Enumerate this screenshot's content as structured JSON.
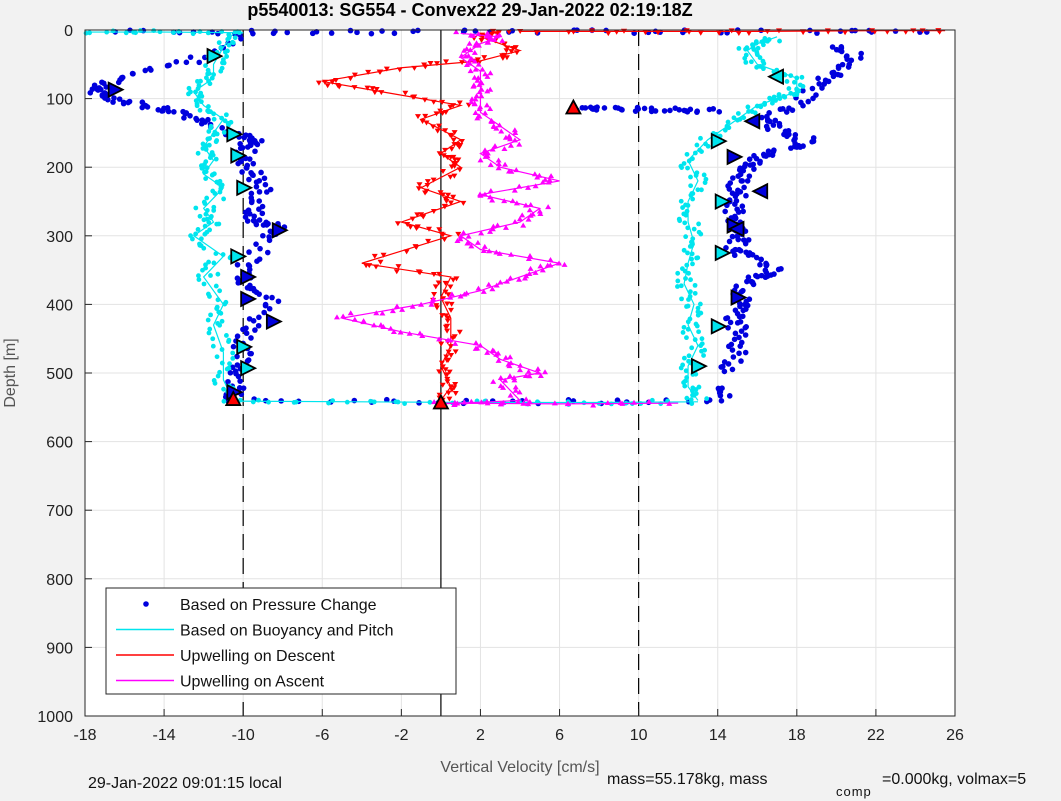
{
  "chart_data": {
    "type": "scatter",
    "title": "p5540013: SG554 - Convex22 29-Jan-2022 02:19:18Z",
    "xlabel": "Vertical Velocity [cm/s]",
    "ylabel": "Depth [m]",
    "xlim": [
      -18,
      26
    ],
    "ylim": [
      0,
      1000
    ],
    "y_reversed": true,
    "grid": true,
    "x_ticks": [
      -18,
      -14,
      -10,
      -6,
      -2,
      2,
      6,
      10,
      14,
      18,
      22,
      26
    ],
    "y_ticks": [
      0,
      100,
      200,
      300,
      400,
      500,
      600,
      700,
      800,
      900,
      1000
    ],
    "reference_lines": [
      {
        "x": -10,
        "style": "dashed",
        "color": "#000000"
      },
      {
        "x": 0,
        "style": "solid",
        "color": "#000000"
      },
      {
        "x": 10,
        "style": "dashed",
        "color": "#000000"
      }
    ],
    "legend": {
      "position": "bottom-left",
      "entries": [
        {
          "label": "Based on Pressure Change",
          "marker": "dot",
          "color": "#0000dd"
        },
        {
          "label": "Based on Buoyancy and Pitch",
          "marker": "line",
          "color": "#00e5ee"
        },
        {
          "label": "Upwelling on Descent",
          "marker": "line",
          "color": "#ff0000"
        },
        {
          "label": "Upwelling on Ascent",
          "marker": "line",
          "color": "#ff00ff"
        }
      ]
    },
    "series": [
      {
        "name": "Based on Pressure Change",
        "color": "#0000dd",
        "segments": [
          {
            "x": [
              -9.5,
              -12,
              -15,
              -17,
              -17.5,
              -16.5,
              -15,
              -13.5,
              -12,
              -10.5,
              -9.5,
              -9.8,
              -10,
              -9.5,
              -9,
              -9.5,
              -9.5,
              -8.2,
              -8.5,
              -9.8,
              -9.8,
              -8.5,
              -9.5,
              -10,
              -10.2,
              -10.3,
              -10.4
            ],
            "y": [
              5,
              40,
              60,
              80,
              90,
              100,
              110,
              120,
              130,
              150,
              160,
              170,
              190,
              210,
              230,
              260,
              280,
              285,
              300,
              340,
              370,
              390,
              430,
              460,
              490,
              520,
              540
            ]
          },
          {
            "x": [
              -10.5,
              -2,
              6,
              14,
              14.5
            ],
            "y": [
              540,
              542,
              542,
              540,
              520
            ]
          },
          {
            "x": [
              14.5,
              15,
              15,
              14.8,
              15.5,
              15,
              16,
              17,
              15.5,
              14.8,
              15.2,
              15,
              14.8,
              15,
              15,
              15.5,
              16,
              17.5,
              18.5,
              17,
              16.5,
              18,
              19,
              20,
              21,
              20
            ],
            "y": [
              500,
              470,
              440,
              420,
              400,
              380,
              360,
              350,
              330,
              320,
              300,
              280,
              260,
              240,
              220,
              200,
              185,
              175,
              160,
              145,
              130,
              110,
              80,
              60,
              40,
              20
            ]
          },
          {
            "x": [
              6.5,
              8,
              10,
              12,
              14
            ],
            "y": [
              115,
              115,
              116,
              117,
              118
            ]
          },
          {
            "x": [
              -16,
              -10,
              -4,
              2,
              8,
              14,
              20,
              25
            ],
            "y": [
              2,
              3,
              3,
              2,
              2,
              2,
              2,
              2
            ]
          }
        ]
      },
      {
        "name": "Based on Buoyancy and Pitch",
        "color": "#00e5ee",
        "segments": [
          {
            "x": [
              -10.5,
              -11,
              -11.5,
              -11.5,
              -12.5,
              -12,
              -11,
              -11.5,
              -12,
              -11.5,
              -12,
              -11,
              -12,
              -11.5,
              -12.5,
              -11,
              -12,
              -11,
              -11.5,
              -11,
              -11,
              -10.5
            ],
            "y": [
              5,
              25,
              50,
              70,
              90,
              110,
              130,
              150,
              170,
              190,
              210,
              230,
              260,
              280,
              300,
              330,
              360,
              400,
              430,
              470,
              510,
              540
            ]
          },
          {
            "x": [
              -10.5,
              -4,
              2,
              8,
              13
            ],
            "y": [
              541,
              542,
              543,
              543,
              542
            ]
          },
          {
            "x": [
              13,
              12.5,
              12.5,
              13,
              12.5,
              12.8,
              12.3,
              12.5,
              12.8,
              12.5,
              12.5,
              13,
              12.5,
              13.5,
              15,
              16,
              17,
              18,
              18,
              16,
              15.5,
              16,
              17
            ],
            "y": [
              540,
              520,
              490,
              460,
              430,
              400,
              370,
              340,
              310,
              280,
              250,
              220,
              190,
              160,
              130,
              110,
              100,
              90,
              70,
              50,
              30,
              20,
              10
            ]
          },
          {
            "x": [
              -18,
              -14,
              -10
            ],
            "y": [
              3,
              3,
              4
            ]
          }
        ]
      },
      {
        "name": "Upwelling on Descent",
        "color": "#ff0000",
        "segments": [
          {
            "x": [
              3,
              2,
              4,
              2,
              -2,
              -6,
              -3,
              1,
              -1,
              1,
              0,
              1,
              -1,
              1,
              -2,
              0.5,
              -4,
              0.5,
              0,
              0.5,
              0.5,
              0,
              0.5,
              0
            ],
            "y": [
              2,
              10,
              30,
              45,
              55,
              75,
              90,
              110,
              130,
              160,
              180,
              200,
              230,
              250,
              280,
              300,
              340,
              360,
              390,
              420,
              460,
              490,
              520,
              540
            ]
          },
          {
            "x": [
              4,
              10,
              16,
              22,
              25.5
            ],
            "y": [
              2,
              2,
              2,
              1,
              1
            ]
          }
        ]
      },
      {
        "name": "Upwelling on Ascent",
        "color": "#ff00ff",
        "segments": [
          {
            "x": [
              0,
              4,
              3,
              5,
              3,
              2,
              -2,
              -5,
              -1,
              2,
              4,
              6,
              2,
              1,
              4,
              5,
              2,
              6,
              3,
              2,
              4,
              3,
              2,
              2,
              2,
              2,
              1,
              2,
              3,
              1
            ],
            "y": [
              545,
              540,
              510,
              500,
              480,
              460,
              440,
              420,
              400,
              380,
              360,
              340,
              320,
              300,
              280,
              260,
              240,
              220,
              200,
              180,
              160,
              140,
              120,
              100,
              80,
              60,
              40,
              20,
              10,
              5
            ]
          },
          {
            "x": [
              0,
              6,
              12
            ],
            "y": [
              544,
              545,
              544
            ]
          }
        ]
      }
    ],
    "markers": [
      {
        "type": "triangle-right",
        "color": "#00e5ee",
        "points": [
          [
            -11.5,
            38
          ],
          [
            -10.5,
            152
          ],
          [
            -10.3,
            183
          ],
          [
            -10,
            230
          ],
          [
            -10.3,
            330
          ],
          [
            -10,
            462
          ],
          [
            -9.8,
            493
          ],
          [
            14,
            162
          ],
          [
            14.2,
            250
          ],
          [
            14.2,
            325
          ],
          [
            14,
            432
          ],
          [
            13,
            490
          ]
        ]
      },
      {
        "type": "triangle-right",
        "color": "#0000dd",
        "points": [
          [
            -16.5,
            87
          ],
          [
            -9.8,
            360
          ],
          [
            -9.8,
            392
          ],
          [
            -8.2,
            292
          ],
          [
            -8.5,
            425
          ],
          [
            -10.5,
            528
          ],
          [
            14.8,
            185
          ],
          [
            14.8,
            285
          ],
          [
            15,
            390
          ]
        ]
      },
      {
        "type": "triangle-left",
        "color": "#00e5ee",
        "points": [
          [
            17,
            68
          ]
        ]
      },
      {
        "type": "triangle-left",
        "color": "#0000dd",
        "points": [
          [
            15.8,
            133
          ],
          [
            16.2,
            235
          ],
          [
            15,
            290
          ]
        ]
      },
      {
        "type": "triangle-up",
        "color": "#ff0000",
        "points": [
          [
            -10.5,
            538
          ],
          [
            6.7,
            113
          ],
          [
            0,
            543
          ]
        ]
      }
    ]
  },
  "footer": {
    "local_time": "29-Jan-2022 09:01:15 local",
    "mass_text": "mass=55.178kg, mass",
    "comp_subscript": "comp",
    "comp_text": "=0.000kg, volmax=5"
  }
}
